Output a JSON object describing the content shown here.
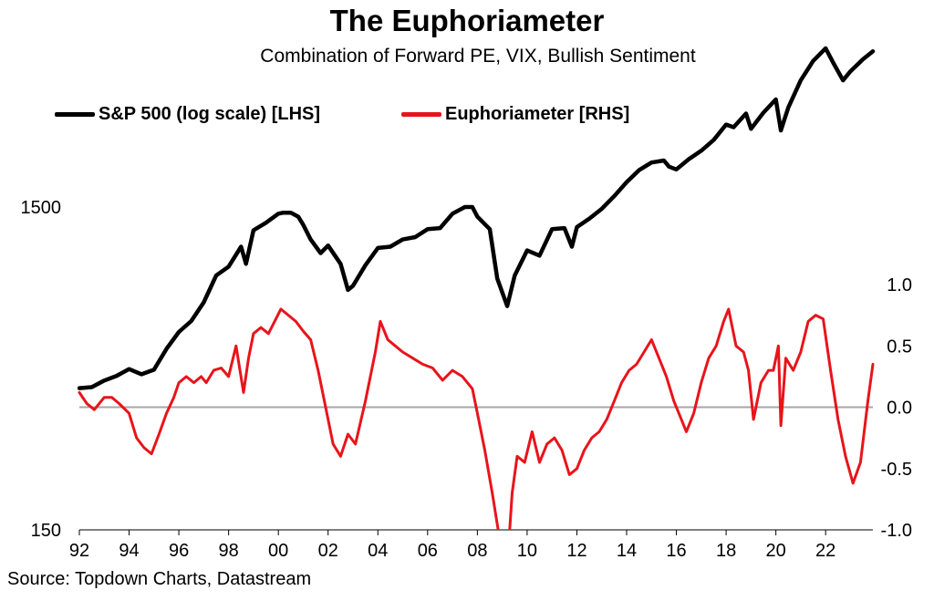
{
  "title": "The Euphoriameter",
  "subtitle": "Combination of Forward PE, VIX, Bullish Sentiment",
  "source": "Source: Topdown Charts, Datastream",
  "colors": {
    "sp500": "#000000",
    "euphoriameter": "#e8141b",
    "zero_line": "#a6a6a6"
  },
  "chart_data": {
    "type": "line",
    "title": "The Euphoriameter",
    "subtitle": "Combination of Forward PE, VIX, Bullish Sentiment",
    "x_ticks": [
      "92",
      "94",
      "96",
      "98",
      "00",
      "02",
      "04",
      "06",
      "08",
      "10",
      "12",
      "14",
      "16",
      "18",
      "20",
      "22"
    ],
    "xlim": [
      1992,
      2023.9
    ],
    "left_axis": {
      "scale": "log",
      "ylim": [
        150,
        5400
      ],
      "ticks": [
        150,
        1500
      ],
      "tick_labels": [
        "150",
        "1500"
      ]
    },
    "right_axis": {
      "scale": "linear",
      "ylim": [
        -1.0,
        1.0
      ],
      "ticks": [
        1.0,
        0.5,
        0.0,
        -0.5,
        -1.0
      ],
      "tick_labels": [
        "1.0",
        "0.5",
        "0.0",
        "-0.5",
        "-1.0"
      ]
    },
    "legend_position": "top-left",
    "series": [
      {
        "name": "S&P 500 (log scale) [LHS]",
        "axis": "left",
        "x": [
          1992.0,
          1992.5,
          1993.0,
          1993.5,
          1994.0,
          1994.5,
          1995.0,
          1995.5,
          1996.0,
          1996.5,
          1997.0,
          1997.5,
          1998.0,
          1998.5,
          1998.7,
          1999.0,
          1999.5,
          2000.0,
          2000.2,
          2000.5,
          2000.8,
          2001.0,
          2001.3,
          2001.7,
          2002.0,
          2002.5,
          2002.8,
          2003.0,
          2003.5,
          2004.0,
          2004.5,
          2005.0,
          2005.5,
          2006.0,
          2006.5,
          2007.0,
          2007.5,
          2007.8,
          2008.0,
          2008.5,
          2008.8,
          2009.2,
          2009.5,
          2010.0,
          2010.5,
          2011.0,
          2011.5,
          2011.8,
          2012.0,
          2012.5,
          2013.0,
          2013.5,
          2014.0,
          2014.5,
          2015.0,
          2015.5,
          2015.7,
          2016.0,
          2016.5,
          2017.0,
          2017.5,
          2018.0,
          2018.3,
          2018.8,
          2019.0,
          2019.5,
          2020.0,
          2020.2,
          2020.5,
          2021.0,
          2021.5,
          2022.0,
          2022.3,
          2022.7,
          2023.0,
          2023.5,
          2023.9
        ],
        "y": [
          412,
          415,
          435,
          450,
          472,
          455,
          470,
          545,
          615,
          665,
          760,
          920,
          980,
          1130,
          1000,
          1270,
          1340,
          1430,
          1440,
          1440,
          1400,
          1320,
          1190,
          1080,
          1140,
          1000,
          830,
          855,
          990,
          1120,
          1130,
          1190,
          1210,
          1280,
          1290,
          1430,
          1500,
          1500,
          1400,
          1280,
          900,
          740,
          920,
          1100,
          1060,
          1280,
          1290,
          1130,
          1300,
          1380,
          1480,
          1620,
          1790,
          1950,
          2060,
          2090,
          2000,
          1960,
          2110,
          2240,
          2420,
          2700,
          2650,
          2920,
          2620,
          2940,
          3230,
          2590,
          3050,
          3700,
          4250,
          4650,
          4200,
          3700,
          3950,
          4300,
          4550
        ]
      },
      {
        "name": "Euphoriameter [RHS]",
        "axis": "right",
        "x": [
          1992.0,
          1992.3,
          1992.6,
          1993.0,
          1993.3,
          1993.6,
          1994.0,
          1994.3,
          1994.6,
          1994.9,
          1995.2,
          1995.5,
          1995.8,
          1996.0,
          1996.3,
          1996.6,
          1996.9,
          1997.1,
          1997.4,
          1997.7,
          1998.0,
          1998.3,
          1998.6,
          1998.8,
          1999.0,
          1999.3,
          1999.6,
          1999.9,
          2000.1,
          2000.4,
          2000.7,
          2001.0,
          2001.3,
          2001.6,
          2001.9,
          2002.2,
          2002.5,
          2002.8,
          2003.1,
          2003.5,
          2003.9,
          2004.1,
          2004.4,
          2004.7,
          2005.0,
          2005.4,
          2005.8,
          2006.2,
          2006.6,
          2007.0,
          2007.4,
          2007.8,
          2008.0,
          2008.3,
          2008.6,
          2008.9,
          2009.2,
          2009.4,
          2009.6,
          2009.9,
          2010.2,
          2010.5,
          2010.8,
          2011.1,
          2011.4,
          2011.7,
          2012.0,
          2012.3,
          2012.6,
          2012.9,
          2013.2,
          2013.5,
          2013.8,
          2014.1,
          2014.4,
          2014.7,
          2015.0,
          2015.3,
          2015.6,
          2015.9,
          2016.1,
          2016.4,
          2016.7,
          2017.0,
          2017.3,
          2017.6,
          2017.9,
          2018.1,
          2018.4,
          2018.7,
          2018.9,
          2019.1,
          2019.4,
          2019.7,
          2019.9,
          2020.1,
          2020.2,
          2020.4,
          2020.7,
          2021.0,
          2021.3,
          2021.6,
          2021.9,
          2022.2,
          2022.5,
          2022.8,
          2023.1,
          2023.4,
          2023.7,
          2023.9
        ],
        "y": [
          0.12,
          0.03,
          -0.02,
          0.08,
          0.08,
          0.03,
          -0.05,
          -0.25,
          -0.33,
          -0.38,
          -0.22,
          -0.05,
          0.08,
          0.2,
          0.25,
          0.2,
          0.25,
          0.2,
          0.3,
          0.32,
          0.25,
          0.5,
          0.12,
          0.4,
          0.6,
          0.65,
          0.6,
          0.72,
          0.8,
          0.75,
          0.7,
          0.62,
          0.55,
          0.3,
          0.0,
          -0.3,
          -0.4,
          -0.22,
          -0.3,
          0.05,
          0.45,
          0.7,
          0.55,
          0.5,
          0.45,
          0.4,
          0.35,
          0.32,
          0.22,
          0.3,
          0.25,
          0.15,
          -0.05,
          -0.35,
          -0.7,
          -1.08,
          -1.3,
          -0.7,
          -0.4,
          -0.45,
          -0.2,
          -0.45,
          -0.3,
          -0.25,
          -0.35,
          -0.55,
          -0.5,
          -0.35,
          -0.25,
          -0.2,
          -0.1,
          0.05,
          0.2,
          0.3,
          0.35,
          0.45,
          0.55,
          0.4,
          0.25,
          0.05,
          -0.05,
          -0.2,
          -0.05,
          0.2,
          0.4,
          0.5,
          0.7,
          0.8,
          0.5,
          0.45,
          0.3,
          -0.1,
          0.2,
          0.3,
          0.3,
          0.5,
          -0.15,
          0.4,
          0.3,
          0.45,
          0.7,
          0.75,
          0.72,
          0.3,
          -0.1,
          -0.4,
          -0.62,
          -0.45,
          0.05,
          0.35
        ]
      }
    ]
  }
}
